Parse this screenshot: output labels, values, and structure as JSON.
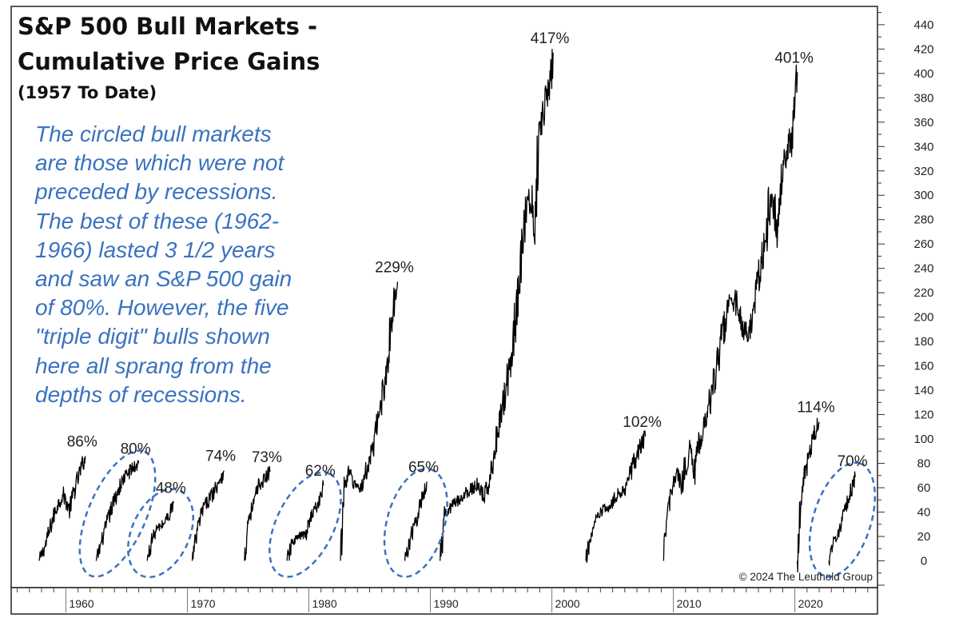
{
  "chart_data": {
    "type": "line",
    "title": "S&P 500 Bull Markets -",
    "title_line2": "Cumulative Price Gains",
    "subtitle": "(1957 To Date)",
    "xlabel": "",
    "ylabel": "",
    "xlim": [
      1955.5,
      2026.8
    ],
    "ylim": [
      -22,
      455
    ],
    "x_ticks": [
      1960,
      1970,
      1980,
      1990,
      2000,
      2010,
      2020
    ],
    "y_ticks": [
      0,
      20,
      40,
      60,
      80,
      100,
      120,
      140,
      160,
      180,
      200,
      220,
      240,
      260,
      280,
      300,
      320,
      340,
      360,
      380,
      400,
      420,
      440
    ],
    "y_axis_side": "right",
    "grid": false,
    "legend": "none",
    "line_color": "#000000",
    "highlight_color": "#3a72c0",
    "annotation": [
      "The circled bull markets",
      "are those which were not",
      "preceded by recessions.",
      "The best of these (1962-",
      "1966) lasted 3 1/2 years",
      "and saw an S&P 500 gain",
      "of 80%. However, the five",
      "\"triple digit\" bulls shown",
      "here all sprang from the",
      "depths of recessions."
    ],
    "copyright": "© 2024 The Leuthold Group",
    "series": [
      {
        "peak_label": "86%",
        "circled": false,
        "points": [
          [
            1957.8,
            0
          ],
          [
            1958.3,
            12
          ],
          [
            1958.8,
            30
          ],
          [
            1959.3,
            46
          ],
          [
            1959.8,
            54
          ],
          [
            1960.3,
            42
          ],
          [
            1960.7,
            58
          ],
          [
            1961.2,
            74
          ],
          [
            1961.6,
            86
          ]
        ]
      },
      {
        "peak_label": "80%",
        "circled": true,
        "points": [
          [
            1962.5,
            0
          ],
          [
            1962.9,
            14
          ],
          [
            1963.3,
            28
          ],
          [
            1963.8,
            44
          ],
          [
            1964.3,
            58
          ],
          [
            1964.8,
            68
          ],
          [
            1965.3,
            74
          ],
          [
            1966.0,
            80
          ]
        ]
      },
      {
        "peak_label": "48%",
        "circled": true,
        "points": [
          [
            1966.7,
            0
          ],
          [
            1967.1,
            18
          ],
          [
            1967.5,
            26
          ],
          [
            1968.0,
            30
          ],
          [
            1968.5,
            38
          ],
          [
            1968.9,
            48
          ]
        ]
      },
      {
        "peak_label": "74%",
        "circled": false,
        "points": [
          [
            1970.4,
            0
          ],
          [
            1970.9,
            28
          ],
          [
            1971.3,
            44
          ],
          [
            1971.8,
            50
          ],
          [
            1972.4,
            62
          ],
          [
            1973.0,
            74
          ]
        ]
      },
      {
        "peak_label": "73%",
        "circled": false,
        "points": [
          [
            1974.7,
            0
          ],
          [
            1975.0,
            34
          ],
          [
            1975.5,
            48
          ],
          [
            1975.9,
            62
          ],
          [
            1976.3,
            66
          ],
          [
            1976.8,
            73
          ]
        ]
      },
      {
        "peak_label": "62%",
        "circled": true,
        "points": [
          [
            1978.2,
            0
          ],
          [
            1978.7,
            16
          ],
          [
            1979.2,
            20
          ],
          [
            1979.8,
            22
          ],
          [
            1980.2,
            38
          ],
          [
            1980.8,
            46
          ],
          [
            1981.2,
            62
          ]
        ]
      },
      {
        "peak_label": "229%",
        "circled": false,
        "points": [
          [
            1982.6,
            0
          ],
          [
            1982.9,
            62
          ],
          [
            1983.3,
            72
          ],
          [
            1983.8,
            62
          ],
          [
            1984.3,
            60
          ],
          [
            1984.8,
            76
          ],
          [
            1985.3,
            92
          ],
          [
            1985.8,
            122
          ],
          [
            1986.3,
            150
          ],
          [
            1986.8,
            195
          ],
          [
            1987.3,
            229
          ]
        ]
      },
      {
        "peak_label": "65%",
        "circled": true,
        "points": [
          [
            1987.9,
            0
          ],
          [
            1988.3,
            16
          ],
          [
            1988.8,
            32
          ],
          [
            1989.3,
            50
          ],
          [
            1989.7,
            65
          ]
        ]
      },
      {
        "peak_label": "417%",
        "circled": false,
        "points": [
          [
            1990.8,
            0
          ],
          [
            1991.2,
            36
          ],
          [
            1991.7,
            44
          ],
          [
            1992.3,
            50
          ],
          [
            1993.0,
            56
          ],
          [
            1993.8,
            62
          ],
          [
            1994.5,
            52
          ],
          [
            1995.0,
            74
          ],
          [
            1995.6,
            110
          ],
          [
            1996.2,
            140
          ],
          [
            1996.8,
            180
          ],
          [
            1997.4,
            240
          ],
          [
            1997.9,
            290
          ],
          [
            1998.3,
            300
          ],
          [
            1998.6,
            260
          ],
          [
            1998.9,
            350
          ],
          [
            1999.4,
            376
          ],
          [
            1999.8,
            390
          ],
          [
            2000.1,
            417
          ]
        ]
      },
      {
        "peak_label": "102%",
        "circled": false,
        "points": [
          [
            2002.8,
            0
          ],
          [
            2003.2,
            20
          ],
          [
            2003.7,
            34
          ],
          [
            2004.2,
            42
          ],
          [
            2004.8,
            44
          ],
          [
            2005.4,
            54
          ],
          [
            2006.0,
            60
          ],
          [
            2006.6,
            76
          ],
          [
            2007.2,
            92
          ],
          [
            2007.7,
            102
          ]
        ]
      },
      {
        "peak_label": "401%",
        "circled": false,
        "points": [
          [
            2009.2,
            0
          ],
          [
            2009.5,
            40
          ],
          [
            2009.9,
            58
          ],
          [
            2010.3,
            72
          ],
          [
            2010.7,
            60
          ],
          [
            2011.3,
            96
          ],
          [
            2011.7,
            70
          ],
          [
            2012.2,
            100
          ],
          [
            2012.8,
            120
          ],
          [
            2013.4,
            150
          ],
          [
            2014.0,
            184
          ],
          [
            2014.6,
            210
          ],
          [
            2015.1,
            214
          ],
          [
            2015.6,
            194
          ],
          [
            2016.1,
            184
          ],
          [
            2016.6,
            200
          ],
          [
            2017.1,
            236
          ],
          [
            2017.6,
            264
          ],
          [
            2018.1,
            310
          ],
          [
            2018.5,
            270
          ],
          [
            2018.8,
            304
          ],
          [
            2019.2,
            330
          ],
          [
            2019.7,
            346
          ],
          [
            2020.0,
            380
          ],
          [
            2020.2,
            401
          ]
        ]
      },
      {
        "peak_label": "114%",
        "circled": false,
        "points": [
          [
            2020.2,
            0
          ],
          [
            2020.5,
            52
          ],
          [
            2020.8,
            70
          ],
          [
            2021.2,
            88
          ],
          [
            2021.6,
            104
          ],
          [
            2022.0,
            114
          ]
        ]
      },
      {
        "peak_label": "70%",
        "circled": true,
        "points": [
          [
            2022.8,
            0
          ],
          [
            2023.1,
            14
          ],
          [
            2023.5,
            22
          ],
          [
            2023.9,
            32
          ],
          [
            2024.3,
            46
          ],
          [
            2024.7,
            60
          ],
          [
            2025.0,
            70
          ]
        ]
      }
    ]
  }
}
